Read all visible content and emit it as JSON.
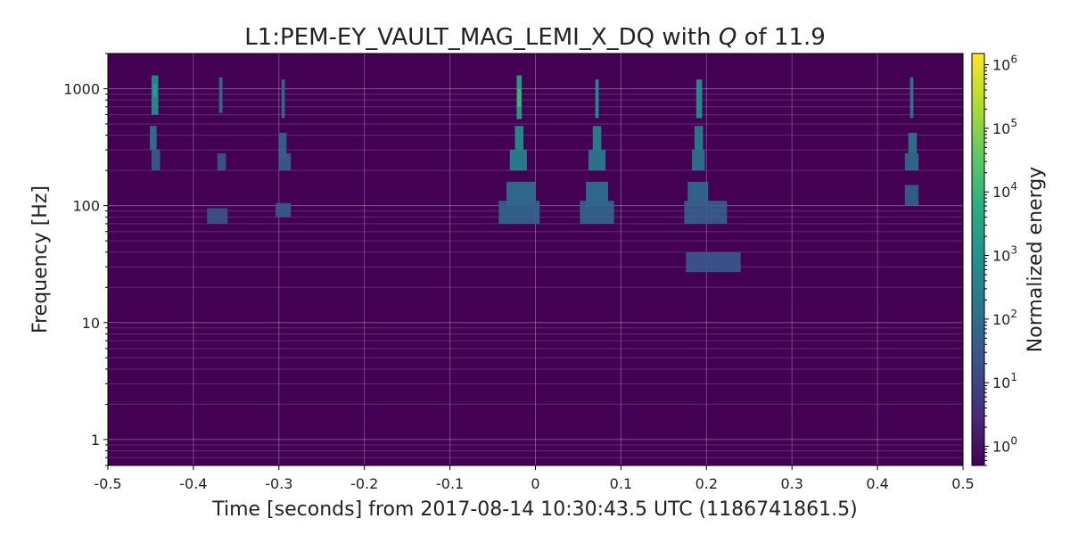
{
  "chart_data": {
    "type": "heatmap",
    "title": "L1:PEM-EY_VAULT_MAG_LEMI_X_DQ with Q of 11.9",
    "title_italic_symbol": "Q",
    "xlabel": "Time [seconds] from 2017-08-14 10:30:43.5 UTC (1186741861.5)",
    "ylabel": "Frequency [Hz]",
    "colorbar_label": "Normalized energy",
    "xlim": [
      -0.5,
      0.5
    ],
    "ylim": [
      0.6,
      2000
    ],
    "y_scale": "log",
    "x_ticks": [
      {
        "value": -0.5,
        "label": "-0.5"
      },
      {
        "value": -0.4,
        "label": "-0.4"
      },
      {
        "value": -0.3,
        "label": "-0.3"
      },
      {
        "value": -0.2,
        "label": "-0.2"
      },
      {
        "value": -0.1,
        "label": "-0.1"
      },
      {
        "value": 0.0,
        "label": "0"
      },
      {
        "value": 0.1,
        "label": "0.1"
      },
      {
        "value": 0.2,
        "label": "0.2"
      },
      {
        "value": 0.3,
        "label": "0.3"
      },
      {
        "value": 0.4,
        "label": "0.4"
      },
      {
        "value": 0.5,
        "label": "0.5"
      }
    ],
    "y_ticks": [
      {
        "value": 1,
        "label": "1"
      },
      {
        "value": 10,
        "label": "10"
      },
      {
        "value": 100,
        "label": "100"
      },
      {
        "value": 1000,
        "label": "1000"
      }
    ],
    "colorbar": {
      "scale": "log",
      "range": [
        0.5,
        1500000
      ],
      "colormap": "viridis",
      "ticks": [
        {
          "value": 1,
          "label": "10",
          "exp": "0"
        },
        {
          "value": 10,
          "label": "10",
          "exp": "1"
        },
        {
          "value": 100,
          "label": "10",
          "exp": "2"
        },
        {
          "value": 1000,
          "label": "10",
          "exp": "3"
        },
        {
          "value": 10000,
          "label": "10",
          "exp": "4"
        },
        {
          "value": 100000,
          "label": "10",
          "exp": "5"
        },
        {
          "value": 1000000,
          "label": "10",
          "exp": "6"
        }
      ]
    },
    "background_energy": 1,
    "grid": true,
    "tiles": [
      {
        "t0": -0.449,
        "t1": -0.441,
        "f0": 600,
        "f1": 1300,
        "e": 800
      },
      {
        "t0": -0.447,
        "t1": -0.443,
        "f0": 850,
        "f1": 1100,
        "e": 2500
      },
      {
        "t0": -0.451,
        "t1": -0.443,
        "f0": 300,
        "f1": 480,
        "e": 150
      },
      {
        "t0": -0.449,
        "t1": -0.439,
        "f0": 200,
        "f1": 300,
        "e": 50
      },
      {
        "t0": -0.37,
        "t1": -0.366,
        "f0": 620,
        "f1": 1250,
        "e": 120
      },
      {
        "t0": -0.372,
        "t1": -0.362,
        "f0": 200,
        "f1": 280,
        "e": 30
      },
      {
        "t0": -0.384,
        "t1": -0.36,
        "f0": 70,
        "f1": 95,
        "e": 25
      },
      {
        "t0": -0.297,
        "t1": -0.293,
        "f0": 560,
        "f1": 1200,
        "e": 100
      },
      {
        "t0": -0.3,
        "t1": -0.291,
        "f0": 260,
        "f1": 420,
        "e": 60
      },
      {
        "t0": -0.3,
        "t1": -0.286,
        "f0": 200,
        "f1": 280,
        "e": 40
      },
      {
        "t0": -0.304,
        "t1": -0.286,
        "f0": 80,
        "f1": 105,
        "e": 30
      },
      {
        "t0": -0.022,
        "t1": -0.016,
        "f0": 550,
        "f1": 1300,
        "e": 3000
      },
      {
        "t0": -0.021,
        "t1": -0.017,
        "f0": 700,
        "f1": 1000,
        "e": 12000
      },
      {
        "t0": -0.024,
        "t1": -0.014,
        "f0": 300,
        "f1": 480,
        "e": 800
      },
      {
        "t0": -0.03,
        "t1": -0.01,
        "f0": 200,
        "f1": 300,
        "e": 400
      },
      {
        "t0": -0.034,
        "t1": 0.0,
        "f0": 100,
        "f1": 160,
        "e": 120
      },
      {
        "t0": -0.043,
        "t1": 0.005,
        "f0": 70,
        "f1": 110,
        "e": 60
      },
      {
        "t0": 0.07,
        "t1": 0.074,
        "f0": 560,
        "f1": 1200,
        "e": 900
      },
      {
        "t0": 0.067,
        "t1": 0.077,
        "f0": 300,
        "f1": 480,
        "e": 400
      },
      {
        "t0": 0.062,
        "t1": 0.082,
        "f0": 200,
        "f1": 300,
        "e": 200
      },
      {
        "t0": 0.059,
        "t1": 0.085,
        "f0": 100,
        "f1": 160,
        "e": 120
      },
      {
        "t0": 0.052,
        "t1": 0.092,
        "f0": 70,
        "f1": 110,
        "e": 60
      },
      {
        "t0": 0.188,
        "t1": 0.195,
        "f0": 560,
        "f1": 1200,
        "e": 1000
      },
      {
        "t0": 0.186,
        "t1": 0.196,
        "f0": 300,
        "f1": 480,
        "e": 300
      },
      {
        "t0": 0.183,
        "t1": 0.198,
        "f0": 200,
        "f1": 300,
        "e": 150
      },
      {
        "t0": 0.178,
        "t1": 0.202,
        "f0": 100,
        "f1": 160,
        "e": 80
      },
      {
        "t0": 0.174,
        "t1": 0.224,
        "f0": 70,
        "f1": 110,
        "e": 40
      },
      {
        "t0": 0.176,
        "t1": 0.24,
        "f0": 27,
        "f1": 40,
        "e": 30
      },
      {
        "t0": 0.438,
        "t1": 0.442,
        "f0": 560,
        "f1": 1250,
        "e": 250
      },
      {
        "t0": 0.436,
        "t1": 0.446,
        "f0": 280,
        "f1": 420,
        "e": 150
      },
      {
        "t0": 0.432,
        "t1": 0.448,
        "f0": 200,
        "f1": 280,
        "e": 80
      },
      {
        "t0": 0.432,
        "t1": 0.448,
        "f0": 100,
        "f1": 150,
        "e": 50
      }
    ]
  }
}
